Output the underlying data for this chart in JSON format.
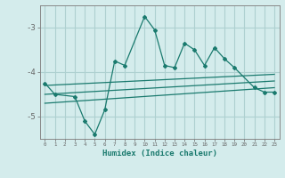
{
  "xlabel": "Humidex (Indice chaleur)",
  "bg_color": "#d4ecec",
  "line_color": "#1a7a6e",
  "grid_color": "#aed0d0",
  "xlim": [
    -0.5,
    23.5
  ],
  "ylim": [
    -5.5,
    -2.5
  ],
  "yticks": [
    -5,
    -4,
    -3
  ],
  "xticks": [
    0,
    1,
    2,
    3,
    4,
    5,
    6,
    7,
    8,
    9,
    10,
    11,
    12,
    13,
    14,
    15,
    16,
    17,
    18,
    19,
    20,
    21,
    22,
    23
  ],
  "main_x": [
    0,
    1,
    3,
    4,
    5,
    6,
    7,
    8,
    10,
    11,
    12,
    13,
    14,
    15,
    16,
    17,
    18,
    19,
    21,
    22,
    23
  ],
  "main_y": [
    -4.25,
    -4.5,
    -4.55,
    -5.1,
    -5.4,
    -4.85,
    -3.75,
    -3.85,
    -2.75,
    -3.05,
    -3.85,
    -3.9,
    -3.35,
    -3.5,
    -3.85,
    -3.45,
    -3.7,
    -3.9,
    -4.35,
    -4.45,
    -4.45
  ],
  "line1_x": [
    0,
    23
  ],
  "line1_y": [
    -4.3,
    -4.05
  ],
  "line2_x": [
    0,
    23
  ],
  "line2_y": [
    -4.5,
    -4.2
  ],
  "line3_x": [
    0,
    23
  ],
  "line3_y": [
    -4.7,
    -4.35
  ]
}
